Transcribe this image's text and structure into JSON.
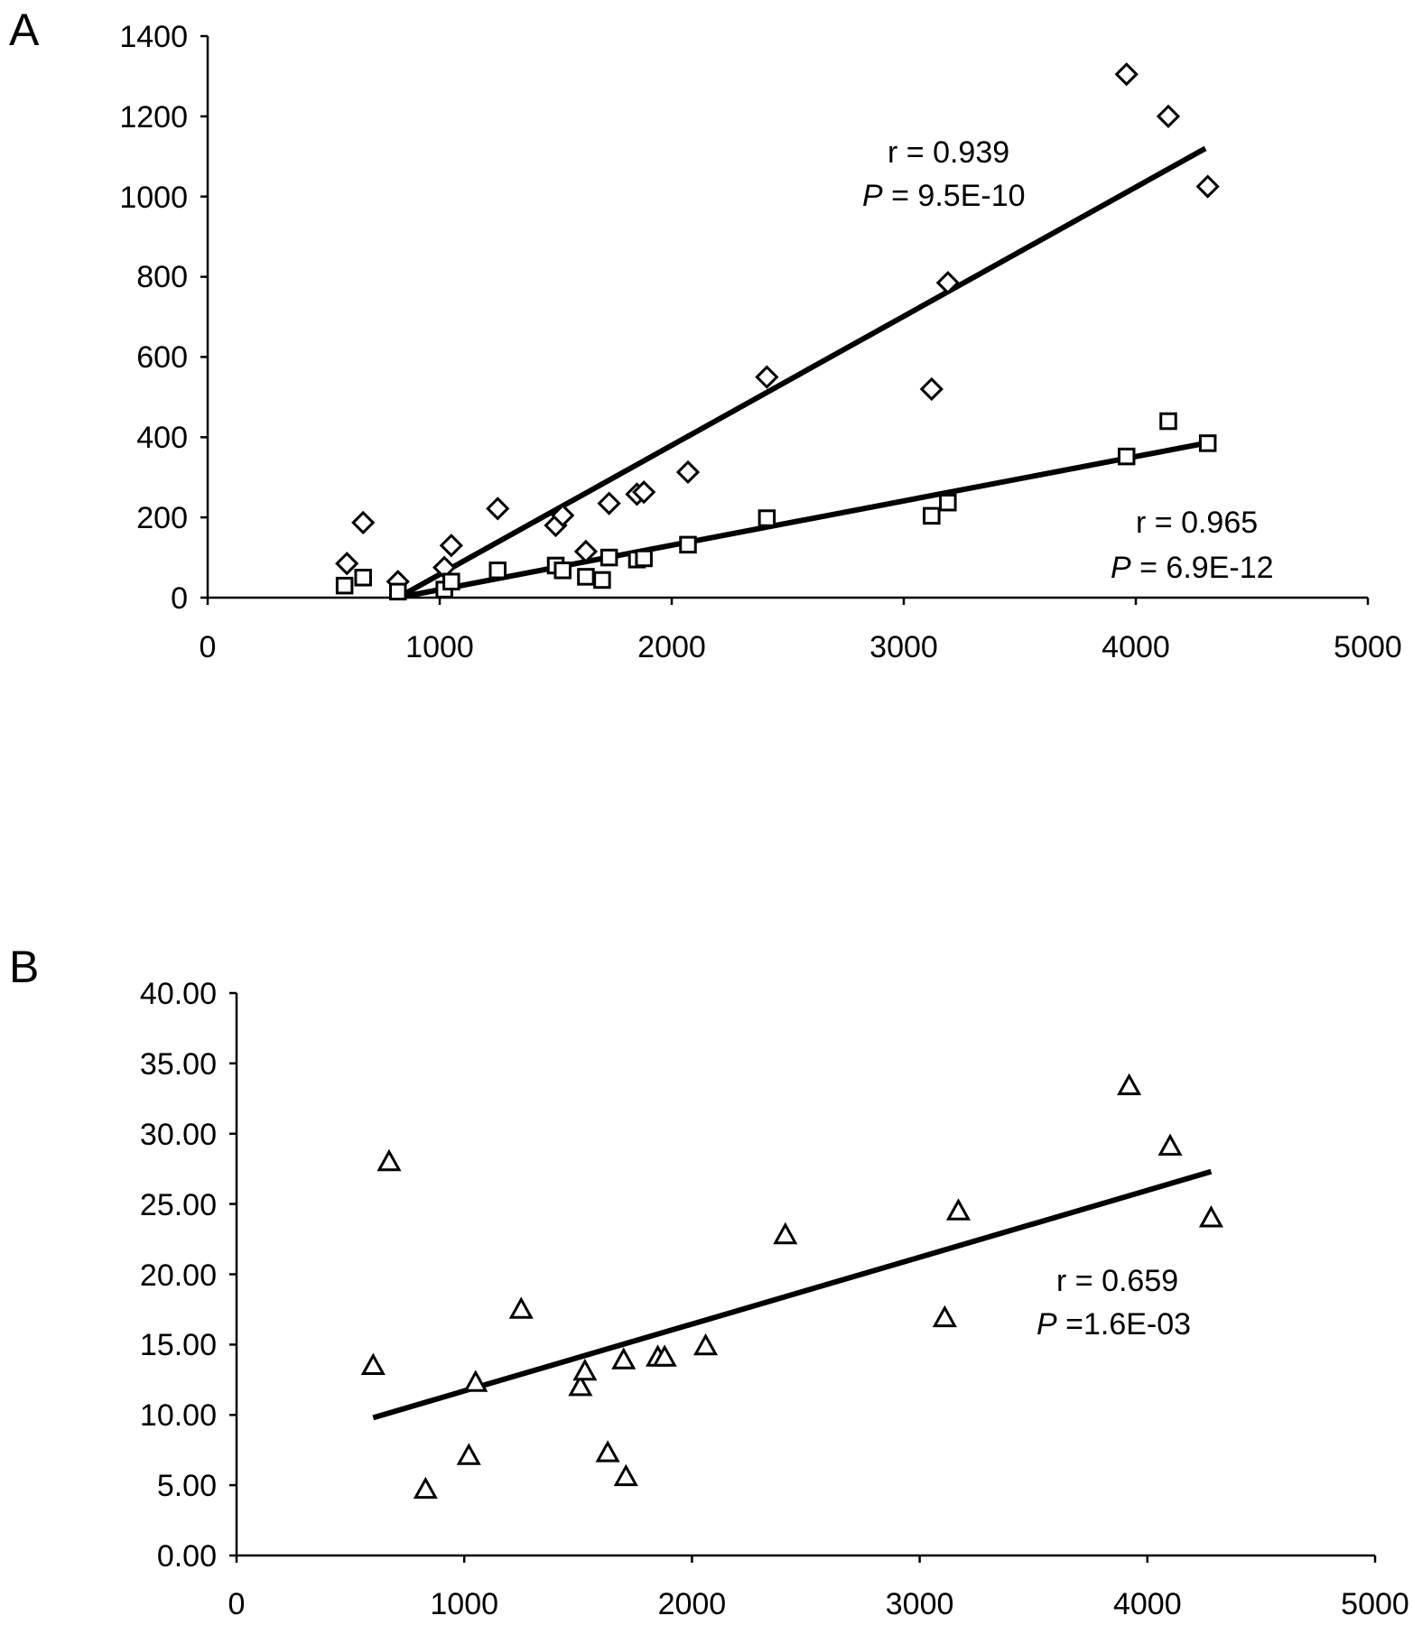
{
  "chart_data": [
    {
      "panel": "A",
      "type": "scatter",
      "xlim": [
        0,
        5000
      ],
      "ylim": [
        0,
        1400
      ],
      "x_ticks": [
        "0",
        "1000",
        "2000",
        "3000",
        "4000",
        "5000"
      ],
      "y_ticks": [
        "0",
        "200",
        "400",
        "600",
        "800",
        "1000",
        "1200",
        "1400"
      ],
      "grid": false,
      "series": [
        {
          "marker": "diamond",
          "points": [
            [
              600,
              85
            ],
            [
              670,
              187
            ],
            [
              820,
              40
            ],
            [
              1020,
              75
            ],
            [
              1050,
              130
            ],
            [
              1250,
              222
            ],
            [
              1500,
              180
            ],
            [
              1530,
              205
            ],
            [
              1630,
              115
            ],
            [
              1730,
              235
            ],
            [
              1850,
              258
            ],
            [
              1880,
              263
            ],
            [
              2070,
              313
            ],
            [
              2410,
              550
            ],
            [
              3120,
              520
            ],
            [
              3190,
              785
            ],
            [
              3960,
              1305
            ],
            [
              4140,
              1200
            ],
            [
              4310,
              1025
            ]
          ],
          "fit": [
            [
              820,
              0
            ],
            [
              4300,
              1120
            ]
          ],
          "r_text": "r = 0.939",
          "p_label": "P",
          "p_value": " = 9.5E-10"
        },
        {
          "marker": "square",
          "points": [
            [
              590,
              30
            ],
            [
              670,
              50
            ],
            [
              820,
              15
            ],
            [
              1020,
              20
            ],
            [
              1050,
              40
            ],
            [
              1250,
              68
            ],
            [
              1500,
              80
            ],
            [
              1530,
              68
            ],
            [
              1630,
              52
            ],
            [
              1700,
              44
            ],
            [
              1730,
              100
            ],
            [
              1850,
              95
            ],
            [
              1880,
              98
            ],
            [
              2070,
              132
            ],
            [
              2410,
              198
            ],
            [
              3120,
              204
            ],
            [
              3190,
              237
            ],
            [
              3960,
              352
            ],
            [
              4140,
              440
            ],
            [
              4310,
              385
            ]
          ],
          "fit": [
            [
              820,
              0
            ],
            [
              4300,
              385
            ]
          ],
          "r_text": "r = 0.965",
          "p_label": "P",
          "p_value": " = 6.9E-12"
        }
      ]
    },
    {
      "panel": "B",
      "type": "scatter",
      "xlim": [
        0,
        5000
      ],
      "ylim": [
        0,
        40
      ],
      "x_ticks": [
        "0",
        "1000",
        "2000",
        "3000",
        "4000",
        "5000"
      ],
      "y_ticks": [
        "0.00",
        "5.00",
        "10.00",
        "15.00",
        "20.00",
        "25.00",
        "30.00",
        "35.00",
        "40.00"
      ],
      "grid": false,
      "series": [
        {
          "marker": "triangle",
          "points": [
            [
              600,
              13.5
            ],
            [
              670,
              28.0
            ],
            [
              830,
              4.7
            ],
            [
              1020,
              7.1
            ],
            [
              1050,
              12.3
            ],
            [
              1250,
              17.5
            ],
            [
              1510,
              12.0
            ],
            [
              1530,
              13.1
            ],
            [
              1630,
              7.3
            ],
            [
              1700,
              13.9
            ],
            [
              1710,
              5.6
            ],
            [
              1850,
              14.1
            ],
            [
              1880,
              14.1
            ],
            [
              2060,
              14.9
            ],
            [
              2410,
              22.8
            ],
            [
              3110,
              16.9
            ],
            [
              3170,
              24.5
            ],
            [
              3920,
              33.4
            ],
            [
              4100,
              29.1
            ],
            [
              4280,
              24.0
            ]
          ],
          "fit": [
            [
              600,
              9.8
            ],
            [
              4280,
              27.3
            ]
          ],
          "r_text": "r = 0.659",
          "p_label": "P",
          "p_value": " =1.6E-03"
        }
      ]
    }
  ],
  "panels": {
    "a": {
      "letter": "A",
      "x_ticks": [
        "0",
        "1000",
        "2000",
        "3000",
        "4000",
        "5000"
      ],
      "y_ticks": [
        "0",
        "200",
        "400",
        "600",
        "800",
        "1000",
        "1200",
        "1400"
      ],
      "diamond_annot": {
        "r": "r = 0.939",
        "p_label": "P",
        "p_value": " = 9.5E-10"
      },
      "square_annot": {
        "r": "r = 0.965",
        "p_label": "P",
        "p_value": " = 6.9E-12"
      }
    },
    "b": {
      "letter": "B",
      "x_ticks": [
        "0",
        "1000",
        "2000",
        "3000",
        "4000",
        "5000"
      ],
      "y_ticks": [
        "0.00",
        "5.00",
        "10.00",
        "15.00",
        "20.00",
        "25.00",
        "30.00",
        "35.00",
        "40.00"
      ],
      "triangle_annot": {
        "r": "r = 0.659",
        "p_label": "P",
        "p_value": " =1.6E-03"
      }
    }
  }
}
